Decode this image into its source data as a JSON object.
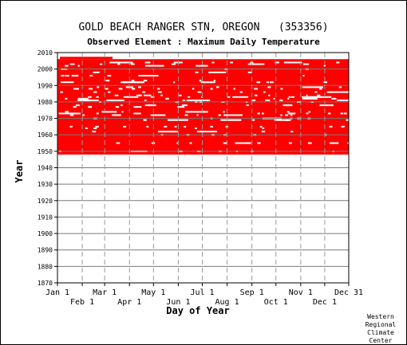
{
  "chart_data": {
    "type": "heatmap",
    "title": "GOLD BEACH RANGER STN, OREGON   (353356)",
    "subtitle": "Observed Element : Maximum Daily Temperature",
    "xlabel": "Day of Year",
    "ylabel": "Year",
    "ylim": [
      1870,
      2010
    ],
    "yticks": [
      1870,
      1880,
      1890,
      1900,
      1910,
      1920,
      1930,
      1940,
      1950,
      1960,
      1970,
      1980,
      1990,
      2000,
      2010
    ],
    "xlim": [
      1,
      365
    ],
    "xticks_top_row": [
      {
        "label": "Jan 1",
        "day": 1
      },
      {
        "label": "Mar 1",
        "day": 60
      },
      {
        "label": "May 1",
        "day": 121
      },
      {
        "label": "Jul 1",
        "day": 182
      },
      {
        "label": "Sep 1",
        "day": 244
      },
      {
        "label": "Nov 1",
        "day": 305
      },
      {
        "label": "Dec 31",
        "day": 365
      }
    ],
    "xticks_bottom_row": [
      {
        "label": "Feb 1",
        "day": 32
      },
      {
        "label": "Apr 1",
        "day": 91
      },
      {
        "label": "Jun 1",
        "day": 152
      },
      {
        "label": "Aug 1",
        "day": 213
      },
      {
        "label": "Oct 1",
        "day": 274
      },
      {
        "label": "Dec 1",
        "day": 335
      }
    ],
    "data_coverage": {
      "color": "#ff0000",
      "start_year": 1948,
      "end_year": 2005,
      "observed": "nearly all days observed, scattered gaps"
    },
    "grid": true
  },
  "credit": [
    "Western",
    "Regional",
    "Climate",
    "Center"
  ],
  "colors": {
    "data": "#ff0000",
    "grid_dashed": "#9a9a9a",
    "grid_solid": "#7a7a7a",
    "axis": "#000000"
  }
}
